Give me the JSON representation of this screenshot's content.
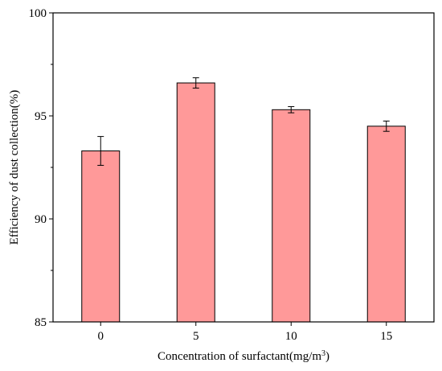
{
  "chart_data": {
    "type": "bar",
    "title": "",
    "xlabel": "Concentration of surfactant(mg/m",
    "xlabel_superscript": "3",
    "xlabel_suffix": ")",
    "ylabel": "Efficiency of dust collection(%)",
    "categories": [
      "0",
      "5",
      "10",
      "15"
    ],
    "values": [
      93.3,
      96.6,
      95.3,
      94.5
    ],
    "errors": [
      0.7,
      0.25,
      0.15,
      0.25
    ],
    "ylim": [
      85,
      100
    ],
    "yticks": [
      85,
      90,
      95,
      100
    ],
    "grid": false,
    "legend": "none",
    "bar_color": "#ff9999",
    "bar_edge_color": "#000000"
  }
}
